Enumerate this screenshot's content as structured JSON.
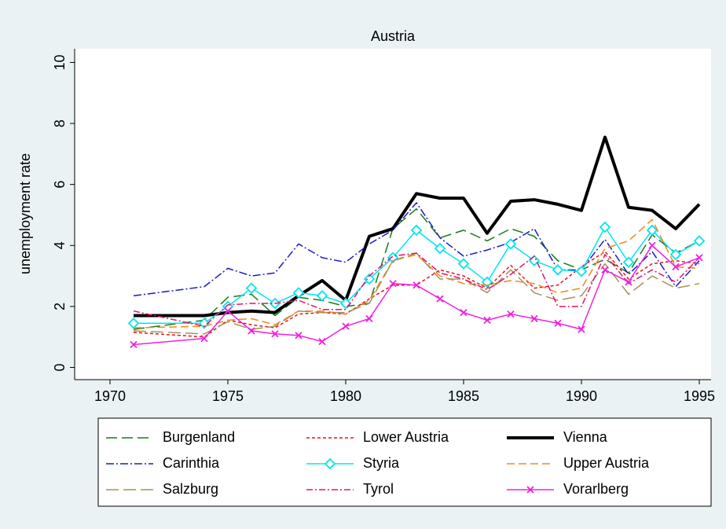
{
  "chart_data": {
    "type": "line",
    "title": "Austria",
    "ylabel": "unemployment rate",
    "x": [
      1971,
      1974,
      1975,
      1976,
      1977,
      1978,
      1979,
      1980,
      1981,
      1982,
      1983,
      1984,
      1985,
      1986,
      1987,
      1988,
      1989,
      1990,
      1991,
      1992,
      1993,
      1994,
      1995
    ],
    "xlim": [
      1968.5,
      1995.5
    ],
    "xticks": [
      1970,
      1975,
      1980,
      1985,
      1990,
      1995
    ],
    "ylim": [
      -0.4,
      10.45
    ],
    "yticks": [
      0,
      2,
      4,
      6,
      8,
      10
    ],
    "series": [
      {
        "name": "Burgenland",
        "color": "#1a7a1a",
        "dash": "14 6",
        "width": 1.5,
        "values": [
          1.25,
          1.55,
          2.3,
          2.4,
          1.7,
          2.3,
          2.2,
          2.0,
          2.1,
          4.55,
          5.2,
          4.25,
          4.5,
          4.15,
          4.55,
          4.3,
          3.5,
          3.2,
          3.55,
          3.1,
          4.35,
          3.75,
          4.15
        ]
      },
      {
        "name": "Lower Austria",
        "color": "#e8111a",
        "dash": "4 3",
        "width": 1.5,
        "values": [
          1.15,
          1.0,
          1.55,
          1.4,
          1.3,
          1.75,
          1.8,
          1.75,
          2.25,
          2.7,
          2.7,
          3.2,
          3.0,
          2.6,
          3.35,
          2.6,
          2.7,
          3.3,
          3.8,
          2.9,
          3.4,
          3.5,
          3.4
        ]
      },
      {
        "name": "Vienna",
        "color": "#000000",
        "dash": "none",
        "width": 4,
        "values": [
          1.7,
          1.7,
          1.8,
          1.85,
          1.8,
          2.35,
          2.85,
          2.2,
          4.3,
          4.55,
          5.7,
          5.55,
          5.55,
          4.4,
          5.45,
          5.5,
          5.35,
          5.15,
          7.55,
          5.25,
          5.15,
          4.55,
          5.35
        ]
      },
      {
        "name": "Carinthia",
        "color": "#1a1acc",
        "dash": "10 3 2 3",
        "width": 1.5,
        "values": [
          2.35,
          2.65,
          3.25,
          3.0,
          3.1,
          4.05,
          3.6,
          3.45,
          4.05,
          4.5,
          5.4,
          4.25,
          3.65,
          3.85,
          4.1,
          4.55,
          3.2,
          3.2,
          4.2,
          3.05,
          3.8,
          2.65,
          3.5
        ]
      },
      {
        "name": "Styria",
        "color": "#00e5f0",
        "dash": "none",
        "width": 1.5,
        "marker": "diamond",
        "values": [
          1.45,
          1.45,
          2.0,
          2.6,
          2.1,
          2.45,
          2.35,
          2.1,
          2.9,
          3.6,
          4.5,
          3.9,
          3.4,
          2.8,
          4.05,
          3.5,
          3.2,
          3.15,
          4.6,
          3.45,
          4.5,
          3.7,
          4.15
        ]
      },
      {
        "name": "Upper Austria",
        "color": "#f08a1a",
        "dash": "10 5",
        "width": 1.5,
        "values": [
          1.3,
          1.35,
          1.55,
          1.6,
          1.4,
          1.85,
          1.85,
          1.75,
          2.2,
          3.5,
          3.7,
          3.0,
          2.75,
          2.7,
          2.85,
          2.75,
          2.45,
          2.6,
          3.9,
          4.15,
          4.85,
          3.3,
          3.25
        ]
      },
      {
        "name": "Salzburg",
        "color": "#a8905a",
        "dash": "16 6",
        "width": 1.5,
        "values": [
          1.2,
          1.1,
          1.5,
          1.25,
          1.35,
          1.85,
          1.8,
          1.8,
          2.1,
          3.5,
          3.75,
          2.9,
          2.9,
          2.45,
          3.2,
          2.45,
          2.2,
          2.35,
          3.4,
          2.4,
          3.0,
          2.6,
          2.75
        ]
      },
      {
        "name": "Tyrol",
        "color": "#e0146e",
        "dash": "8 3 2 3",
        "width": 1.5,
        "values": [
          1.85,
          1.35,
          2.05,
          2.1,
          2.1,
          2.2,
          1.9,
          1.9,
          3.0,
          3.65,
          3.75,
          3.1,
          2.9,
          2.55,
          3.05,
          3.65,
          2.0,
          2.0,
          3.7,
          2.75,
          3.2,
          2.8,
          3.6
        ]
      },
      {
        "name": "Vorarlberg",
        "color": "#f020e0",
        "dash": "none",
        "width": 1.5,
        "marker": "x",
        "values": [
          0.75,
          0.95,
          1.85,
          1.2,
          1.1,
          1.05,
          0.85,
          1.35,
          1.6,
          2.75,
          2.7,
          2.25,
          1.8,
          1.55,
          1.75,
          1.6,
          1.45,
          1.25,
          3.2,
          2.8,
          4.0,
          3.3,
          3.6
        ]
      }
    ]
  }
}
